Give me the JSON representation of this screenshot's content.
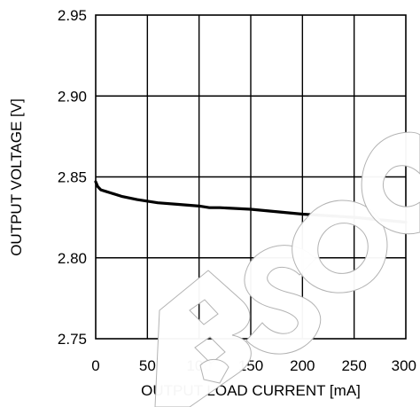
{
  "chart_data": {
    "type": "line",
    "title": "",
    "xlabel": "OUTPUT LOAD CURRENT [mA]",
    "ylabel": "OUTPUT VOLTAGE [V]",
    "xlim": [
      0,
      300
    ],
    "ylim": [
      2.75,
      2.95
    ],
    "x_ticks": [
      0,
      50,
      100,
      150,
      200,
      250,
      300
    ],
    "y_ticks": [
      2.75,
      2.8,
      2.85,
      2.9,
      2.95
    ],
    "x_tick_labels": [
      "0",
      "50",
      "100",
      "150",
      "200",
      "250",
      "300"
    ],
    "y_tick_labels": [
      "2.75",
      "2.80",
      "2.85",
      "2.90",
      "2.95"
    ],
    "grid": true,
    "series": [
      {
        "name": "",
        "color": "#000000",
        "x": [
          0,
          2,
          5,
          10,
          15,
          25,
          40,
          60,
          80,
          100,
          110,
          120,
          150,
          200,
          250,
          300
        ],
        "y": [
          2.847,
          2.844,
          2.842,
          2.841,
          2.84,
          2.838,
          2.836,
          2.834,
          2.833,
          2.832,
          2.831,
          2.831,
          2.83,
          2.827,
          2.825,
          2.822
        ]
      }
    ]
  },
  "watermark": {
    "text": "OBSOLETE",
    "color": "#ffffff"
  }
}
